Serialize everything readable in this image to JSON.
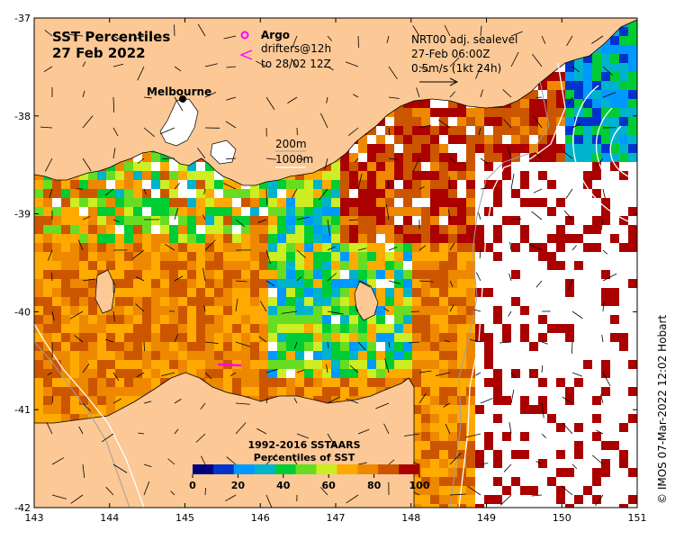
{
  "title": {
    "line1": "SST Percentiles",
    "line2": "27 Feb 2022"
  },
  "argo_legend": {
    "marker": "o",
    "label": "Argo",
    "drifters_marker": "<",
    "drifters_line1": "drifters@12h",
    "drifters_line2": "to 28/02 12Z",
    "argo_color": "#ff00ff",
    "drifter_color": "#ff00ff"
  },
  "current_legend": {
    "line1": "NRT00 adj. sealevel",
    "line2": "27-Feb 06:00Z",
    "line3": "0.5m/s (1kt 24h)"
  },
  "depth_legend": {
    "line1": "200m",
    "line2": "1000m"
  },
  "city": {
    "name": "Melbourne",
    "lon": 145.0,
    "lat": -37.8
  },
  "colorbar": {
    "title1": "1992-2016 SSTAARS",
    "title2": "Percentiles of SST",
    "colors": [
      "#00007f",
      "#0033cc",
      "#0099ff",
      "#00b3cc",
      "#00cc33",
      "#66dd22",
      "#ccee22",
      "#ffaa00",
      "#ee8800",
      "#cc5500",
      "#aa0000"
    ],
    "tick_labels": [
      "0",
      "20",
      "40",
      "60",
      "80",
      "100"
    ]
  },
  "axes": {
    "x_ticks": [
      "143",
      "144",
      "145",
      "146",
      "147",
      "148",
      "149",
      "150",
      "151"
    ],
    "y_ticks": [
      "-37",
      "-38",
      "-39",
      "-40",
      "-41",
      "-42"
    ],
    "xlim": [
      143,
      151
    ],
    "ylim": [
      -42,
      -37
    ]
  },
  "colors": {
    "land": "#fbc896",
    "ocean_gap": "#ffffff"
  },
  "credit": "© IMOS 07-Mar-2022 12:02 Hobart"
}
